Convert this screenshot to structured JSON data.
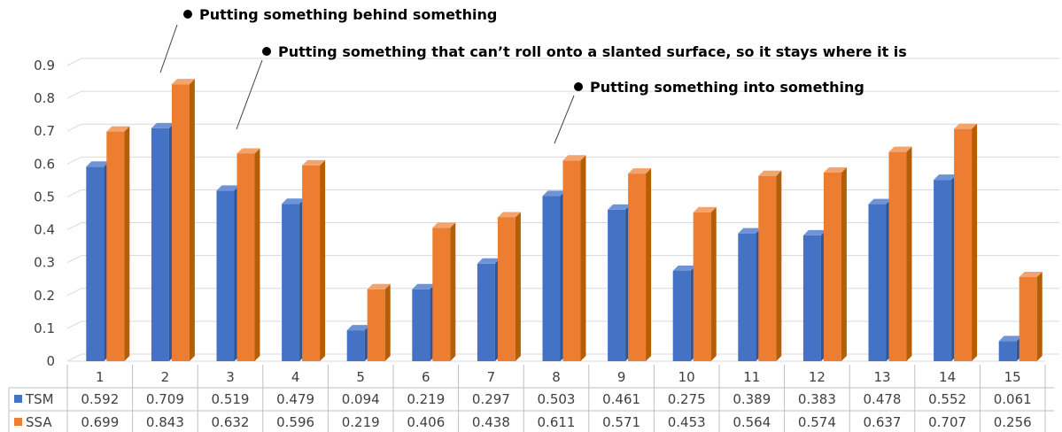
{
  "chart_data": {
    "type": "bar",
    "categories": [
      "1",
      "2",
      "3",
      "4",
      "5",
      "6",
      "7",
      "8",
      "9",
      "10",
      "11",
      "12",
      "13",
      "14",
      "15"
    ],
    "series": [
      {
        "name": "TSM",
        "values": [
          0.592,
          0.709,
          0.519,
          0.479,
          0.094,
          0.219,
          0.297,
          0.503,
          0.461,
          0.275,
          0.389,
          0.383,
          0.478,
          0.552,
          0.061
        ]
      },
      {
        "name": "SSA",
        "values": [
          0.699,
          0.843,
          0.632,
          0.596,
          0.219,
          0.406,
          0.438,
          0.611,
          0.571,
          0.453,
          0.564,
          0.574,
          0.637,
          0.707,
          0.256
        ]
      }
    ],
    "y_ticks": [
      "0",
      "0.1",
      "0.2",
      "0.3",
      "0.4",
      "0.5",
      "0.6",
      "0.7",
      "0.8",
      "0.9"
    ],
    "ylim": [
      0,
      0.9
    ],
    "grid": true,
    "style": "3d-clustered-column",
    "legend": "data-table-below",
    "colors": {
      "TSM": "#4472c4",
      "TSM_side": "#2f5597",
      "TSM_top": "#6e93d6",
      "SSA": "#ed7d31",
      "SSA_side": "#b45f06",
      "SSA_top": "#f4a36c",
      "grid": "#d9d9d9",
      "table_border": "#bfbfbf"
    },
    "annotations": [
      {
        "text": "Putting something behind something",
        "category": "2"
      },
      {
        "text": "Putting something that can’t roll onto a slanted surface, so it stays where it is",
        "category": "3"
      },
      {
        "text": "Putting something into something",
        "category": "8"
      }
    ]
  }
}
